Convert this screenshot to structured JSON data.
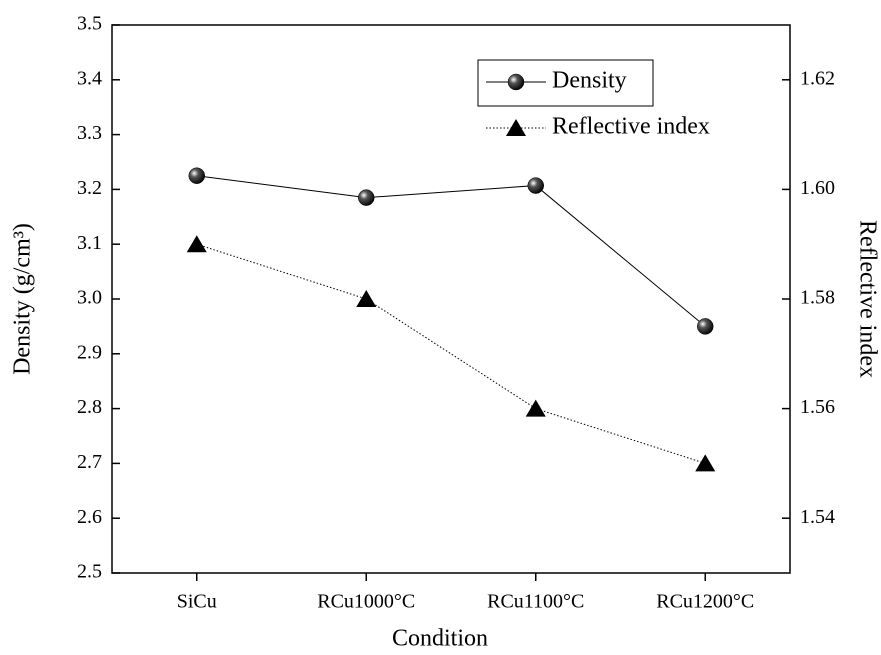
{
  "chart_data": {
    "type": "line",
    "x_label": "Condition",
    "y_label": "Density (g/cm³)",
    "y2_label": "Reflective index",
    "categories": [
      "SiCu",
      "RCu1000°C",
      "RCu1100°C",
      "RCu1200°C"
    ],
    "series": [
      {
        "name": "Density",
        "color": "#000000",
        "marker": "sphere",
        "line_style": "solid",
        "values": [
          3.225,
          3.185,
          3.207,
          2.95
        ]
      },
      {
        "name": "Reflective index",
        "color": "#000000",
        "marker": "triangle",
        "line_style": "dotted",
        "axis": "y2",
        "values": [
          1.59,
          1.58,
          1.56,
          1.55
        ]
      }
    ],
    "ylim": [
      2.5,
      3.5
    ],
    "yticks": [
      2.5,
      2.6,
      2.7,
      2.8,
      2.9,
      {
        "value": 3.0,
        "label": "3.0"
      },
      3.1,
      3.2,
      3.3,
      3.4,
      3.5
    ],
    "y2lim": [
      1.53,
      1.63
    ],
    "y2ticks": [
      1.54,
      1.56,
      1.58,
      {
        "value": 1.6,
        "label": "1.60"
      },
      1.62
    ],
    "legend": "upper right",
    "grid": false
  }
}
